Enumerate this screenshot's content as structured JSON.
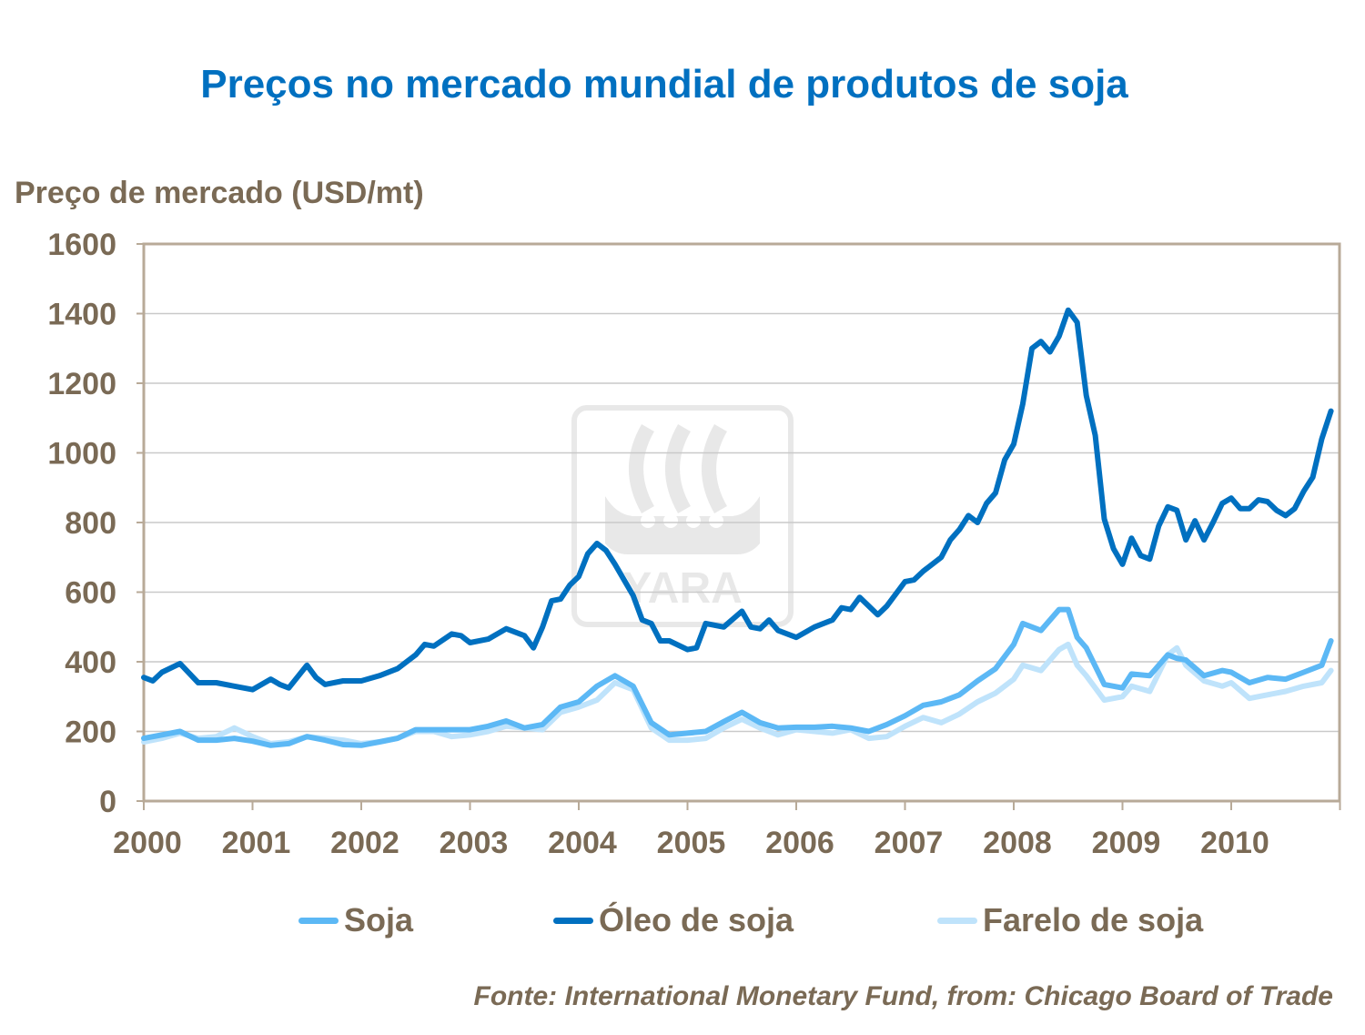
{
  "title": "Preços no mercado mundial de produtos de soja",
  "source": "Fonte: International  Monetary Fund, from: Chicago Board of Trade",
  "watermark": "YARA",
  "chart_data": {
    "type": "line",
    "title": "Preços no mercado mundial de produtos de soja",
    "ylabel": "Preço de mercado (USD/mt)",
    "xlabel": "",
    "ylim": [
      0,
      1600
    ],
    "yticks": [
      0,
      200,
      400,
      600,
      800,
      1000,
      1200,
      1400,
      1600
    ],
    "xlim": [
      2000,
      2011
    ],
    "xticks": [
      "2000",
      "2001",
      "2002",
      "2003",
      "2004",
      "2005",
      "2006",
      "2007",
      "2008",
      "2009",
      "2010"
    ],
    "grid": "horizontal",
    "legend": "bottom",
    "series": [
      {
        "name": "Soja",
        "color": "#5CB8F5",
        "x": [
          2000.0,
          2000.167,
          2000.333,
          2000.5,
          2000.667,
          2000.833,
          2001.0,
          2001.167,
          2001.333,
          2001.5,
          2001.667,
          2001.833,
          2002.0,
          2002.167,
          2002.333,
          2002.5,
          2002.667,
          2002.833,
          2003.0,
          2003.167,
          2003.333,
          2003.5,
          2003.667,
          2003.833,
          2004.0,
          2004.167,
          2004.333,
          2004.5,
          2004.667,
          2004.833,
          2005.0,
          2005.167,
          2005.333,
          2005.5,
          2005.667,
          2005.833,
          2006.0,
          2006.167,
          2006.333,
          2006.5,
          2006.667,
          2006.833,
          2007.0,
          2007.167,
          2007.333,
          2007.5,
          2007.667,
          2007.833,
          2008.0,
          2008.083,
          2008.25,
          2008.417,
          2008.5,
          2008.583,
          2008.667,
          2008.833,
          2009.0,
          2009.083,
          2009.25,
          2009.417,
          2009.5,
          2009.583,
          2009.75,
          2009.917,
          2010.0,
          2010.167,
          2010.333,
          2010.5,
          2010.667,
          2010.833,
          2010.917
        ],
        "values": [
          180,
          190,
          200,
          175,
          175,
          180,
          172,
          160,
          165,
          185,
          175,
          162,
          160,
          170,
          180,
          205,
          205,
          205,
          205,
          215,
          230,
          210,
          220,
          270,
          285,
          330,
          360,
          330,
          225,
          190,
          195,
          200,
          228,
          255,
          225,
          210,
          212,
          212,
          215,
          210,
          200,
          220,
          245,
          275,
          285,
          305,
          345,
          380,
          450,
          510,
          490,
          550,
          550,
          470,
          440,
          335,
          325,
          365,
          360,
          420,
          410,
          405,
          360,
          375,
          370,
          340,
          355,
          350,
          370,
          390,
          460
        ]
      },
      {
        "name": "Óleo de soja",
        "color": "#0070C0",
        "x": [
          2000.0,
          2000.083,
          2000.167,
          2000.333,
          2000.5,
          2000.667,
          2000.833,
          2001.0,
          2001.167,
          2001.25,
          2001.333,
          2001.5,
          2001.583,
          2001.667,
          2001.833,
          2002.0,
          2002.167,
          2002.333,
          2002.5,
          2002.583,
          2002.667,
          2002.833,
          2002.917,
          2003.0,
          2003.167,
          2003.333,
          2003.5,
          2003.583,
          2003.667,
          2003.75,
          2003.833,
          2003.917,
          2004.0,
          2004.083,
          2004.167,
          2004.25,
          2004.333,
          2004.5,
          2004.583,
          2004.667,
          2004.75,
          2004.833,
          2005.0,
          2005.083,
          2005.167,
          2005.333,
          2005.5,
          2005.583,
          2005.667,
          2005.75,
          2005.833,
          2006.0,
          2006.167,
          2006.333,
          2006.417,
          2006.5,
          2006.583,
          2006.667,
          2006.75,
          2006.833,
          2007.0,
          2007.083,
          2007.167,
          2007.333,
          2007.417,
          2007.5,
          2007.583,
          2007.667,
          2007.75,
          2007.833,
          2007.917,
          2008.0,
          2008.083,
          2008.167,
          2008.25,
          2008.333,
          2008.417,
          2008.5,
          2008.583,
          2008.667,
          2008.75,
          2008.833,
          2008.917,
          2009.0,
          2009.083,
          2009.167,
          2009.25,
          2009.333,
          2009.417,
          2009.5,
          2009.583,
          2009.667,
          2009.75,
          2009.833,
          2009.917,
          2010.0,
          2010.083,
          2010.167,
          2010.25,
          2010.333,
          2010.417,
          2010.5,
          2010.583,
          2010.667,
          2010.75,
          2010.833,
          2010.917
        ],
        "values": [
          355,
          345,
          370,
          395,
          340,
          340,
          330,
          320,
          350,
          335,
          325,
          390,
          355,
          335,
          345,
          345,
          360,
          380,
          420,
          450,
          445,
          480,
          475,
          455,
          465,
          495,
          475,
          440,
          500,
          575,
          580,
          620,
          645,
          710,
          740,
          720,
          680,
          590,
          520,
          510,
          460,
          460,
          435,
          440,
          510,
          500,
          545,
          500,
          495,
          520,
          490,
          470,
          500,
          520,
          555,
          550,
          585,
          560,
          535,
          560,
          630,
          635,
          660,
          700,
          750,
          780,
          820,
          800,
          855,
          885,
          980,
          1025,
          1140,
          1300,
          1320,
          1290,
          1335,
          1410,
          1375,
          1165,
          1050,
          810,
          725,
          680,
          755,
          705,
          695,
          790,
          845,
          835,
          750,
          805,
          750,
          800,
          855,
          870,
          840,
          840,
          865,
          860,
          835,
          820,
          840,
          890,
          930,
          1040,
          1120
        ]
      },
      {
        "name": "Farelo de soja",
        "color": "#BFE3FB",
        "x": [
          2000.0,
          2000.167,
          2000.333,
          2000.5,
          2000.667,
          2000.833,
          2001.0,
          2001.167,
          2001.333,
          2001.5,
          2001.667,
          2001.833,
          2002.0,
          2002.167,
          2002.333,
          2002.5,
          2002.667,
          2002.833,
          2003.0,
          2003.167,
          2003.333,
          2003.5,
          2003.667,
          2003.833,
          2004.0,
          2004.167,
          2004.333,
          2004.5,
          2004.667,
          2004.833,
          2005.0,
          2005.167,
          2005.333,
          2005.5,
          2005.667,
          2005.833,
          2006.0,
          2006.167,
          2006.333,
          2006.5,
          2006.667,
          2006.833,
          2007.0,
          2007.167,
          2007.333,
          2007.5,
          2007.667,
          2007.833,
          2008.0,
          2008.083,
          2008.25,
          2008.417,
          2008.5,
          2008.583,
          2008.667,
          2008.833,
          2009.0,
          2009.083,
          2009.25,
          2009.417,
          2009.5,
          2009.583,
          2009.75,
          2009.917,
          2010.0,
          2010.167,
          2010.333,
          2010.5,
          2010.667,
          2010.833,
          2010.917
        ],
        "values": [
          170,
          180,
          195,
          180,
          185,
          210,
          185,
          165,
          170,
          185,
          180,
          175,
          165,
          170,
          180,
          200,
          200,
          185,
          190,
          200,
          215,
          210,
          205,
          255,
          270,
          290,
          340,
          320,
          210,
          175,
          175,
          180,
          210,
          235,
          210,
          190,
          205,
          200,
          195,
          205,
          180,
          185,
          215,
          240,
          225,
          250,
          285,
          310,
          350,
          390,
          375,
          435,
          450,
          390,
          360,
          290,
          300,
          330,
          315,
          420,
          440,
          390,
          345,
          330,
          340,
          295,
          305,
          315,
          330,
          340,
          375
        ]
      }
    ]
  }
}
